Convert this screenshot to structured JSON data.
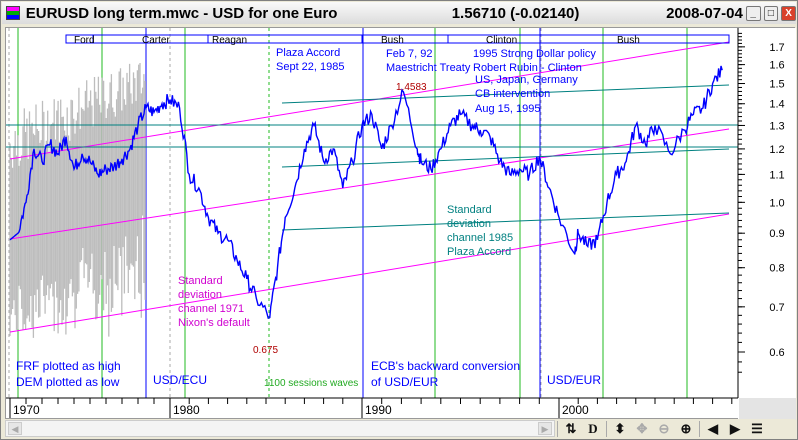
{
  "window": {
    "title": "EURUSD long term.mwc - USD for one Euro",
    "price": "1.56710 (-0.02140)",
    "date": "2008-07-04",
    "minimize": "_",
    "maximize": "□",
    "close": "X"
  },
  "toolbar": {
    "icons": [
      "scroll-right-icon",
      "refresh-icon",
      "d-icon",
      "vertical-scale-icon",
      "move-icon",
      "zoom-out-icon",
      "zoom-in-icon",
      "prev-icon",
      "next-icon",
      "list-icon"
    ],
    "labels": {
      "refresh": "⇅",
      "d": "D",
      "vscale": "⬍",
      "move": "✥",
      "zoomout": "⊖",
      "zoomin": "⊕",
      "prev": "◀",
      "next": "▶",
      "list": "☰"
    }
  },
  "colors": {
    "price": "#0000ff",
    "range": "#bdbdbd",
    "channel": "#ff00ff",
    "teal": "#008080",
    "cycle": "#22bb22",
    "event": "#0000ff",
    "annot_blue": "#0000ff",
    "annot_magenta": "#d000d0",
    "annot_teal": "#008080",
    "annot_red": "#b00000"
  },
  "presidents": [
    {
      "name": "Ford"
    },
    {
      "name": "Carter"
    },
    {
      "name": "Reagan"
    },
    {
      "name": "Bush"
    },
    {
      "name": "Clinton"
    },
    {
      "name": "Bush"
    }
  ],
  "annotations": {
    "plaza1": "Plaza Accord",
    "plaza2": "Sept 22, 1985",
    "feb1": "Feb 7, 92",
    "feb2": "Maestricht Treaty",
    "rubin1": "1995 Strong Dollar policy",
    "rubin2": "Robert Rubin - Clinton",
    "cb1": "US, Japan, Germany",
    "cb2": "CB intervention",
    "cb3": "Aug 15, 1995",
    "high": "1.4583",
    "low": "0.675",
    "sd71a": "Standard",
    "sd71b": "deviation",
    "sd71c": "channel 1971",
    "sd71d": "Nixon's default",
    "sd85a": "Standard",
    "sd85b": "deviation",
    "sd85c": "channel 1985",
    "sd85d": "Plaza Accord",
    "frf": "FRF plotted as high",
    "dem": "DEM plotted as low",
    "ecu": "USD/ECU",
    "waves": "1100 sessions waves",
    "ecb1": "ECB's backward conversion",
    "ecb2": "of USD/EUR",
    "eur": "USD/EUR"
  },
  "chart_data": {
    "type": "line",
    "title": "EURUSD long term - USD for one Euro",
    "xlabel": "",
    "ylabel": "",
    "yscale": "log",
    "ylim": [
      0.55,
      1.8
    ],
    "x_ticks": [
      "1970",
      "1980",
      "1990",
      "2000"
    ],
    "y_ticks": [
      "1.7",
      "1.6",
      "1.5",
      "1.4",
      "1.3",
      "1.2",
      "1.1",
      "1.0",
      "0.9",
      "0.8",
      "0.7",
      "0.6"
    ],
    "series": [
      {
        "name": "EURUSD",
        "points": [
          [
            1970,
            0.88
          ],
          [
            1970.5,
            0.9
          ],
          [
            1971,
            1.0
          ],
          [
            1971.5,
            1.2
          ],
          [
            1972,
            1.15
          ],
          [
            1972.5,
            1.22
          ],
          [
            1973,
            1.18
          ],
          [
            1973.5,
            1.25
          ],
          [
            1974,
            1.12
          ],
          [
            1974.5,
            1.18
          ],
          [
            1975,
            1.15
          ],
          [
            1975.5,
            1.1
          ],
          [
            1976,
            1.12
          ],
          [
            1976.5,
            1.13
          ],
          [
            1977,
            1.16
          ],
          [
            1977.5,
            1.2
          ],
          [
            1978,
            1.3
          ],
          [
            1978.5,
            1.38
          ],
          [
            1979,
            1.36
          ],
          [
            1979.5,
            1.4
          ],
          [
            1980,
            1.42
          ],
          [
            1980.5,
            1.38
          ],
          [
            1981,
            1.1
          ],
          [
            1981.5,
            1.05
          ],
          [
            1982,
            0.95
          ],
          [
            1982.5,
            0.9
          ],
          [
            1983,
            0.88
          ],
          [
            1983.5,
            0.82
          ],
          [
            1984,
            0.77
          ],
          [
            1984.5,
            0.72
          ],
          [
            1985.2,
            0.675
          ],
          [
            1985.6,
            0.8
          ],
          [
            1986,
            0.95
          ],
          [
            1986.5,
            1.05
          ],
          [
            1987,
            1.2
          ],
          [
            1987.5,
            1.3
          ],
          [
            1988,
            1.15
          ],
          [
            1988.5,
            1.2
          ],
          [
            1989,
            1.05
          ],
          [
            1989.5,
            1.15
          ],
          [
            1990,
            1.3
          ],
          [
            1990.5,
            1.35
          ],
          [
            1991,
            1.2
          ],
          [
            1991.5,
            1.3
          ],
          [
            1992.1,
            1.4583
          ],
          [
            1992.8,
            1.2
          ],
          [
            1993,
            1.15
          ],
          [
            1993.5,
            1.12
          ],
          [
            1994,
            1.2
          ],
          [
            1994.5,
            1.3
          ],
          [
            1995,
            1.35
          ],
          [
            1995.6,
            1.3
          ],
          [
            1996,
            1.28
          ],
          [
            1996.5,
            1.25
          ],
          [
            1997,
            1.15
          ],
          [
            1997.5,
            1.1
          ],
          [
            1998,
            1.12
          ],
          [
            1998.5,
            1.1
          ],
          [
            1999,
            1.17
          ],
          [
            1999.5,
            1.05
          ],
          [
            2000,
            0.95
          ],
          [
            2000.8,
            0.84
          ],
          [
            2001,
            0.9
          ],
          [
            2001.5,
            0.86
          ],
          [
            2002,
            0.88
          ],
          [
            2002.5,
            1.0
          ],
          [
            2003,
            1.1
          ],
          [
            2003.5,
            1.15
          ],
          [
            2004,
            1.3
          ],
          [
            2004.5,
            1.22
          ],
          [
            2005,
            1.3
          ],
          [
            2005.8,
            1.18
          ],
          [
            2006.5,
            1.28
          ],
          [
            2007,
            1.35
          ],
          [
            2007.5,
            1.38
          ],
          [
            2008,
            1.5
          ],
          [
            2008.5,
            1.57
          ]
        ]
      }
    ]
  }
}
